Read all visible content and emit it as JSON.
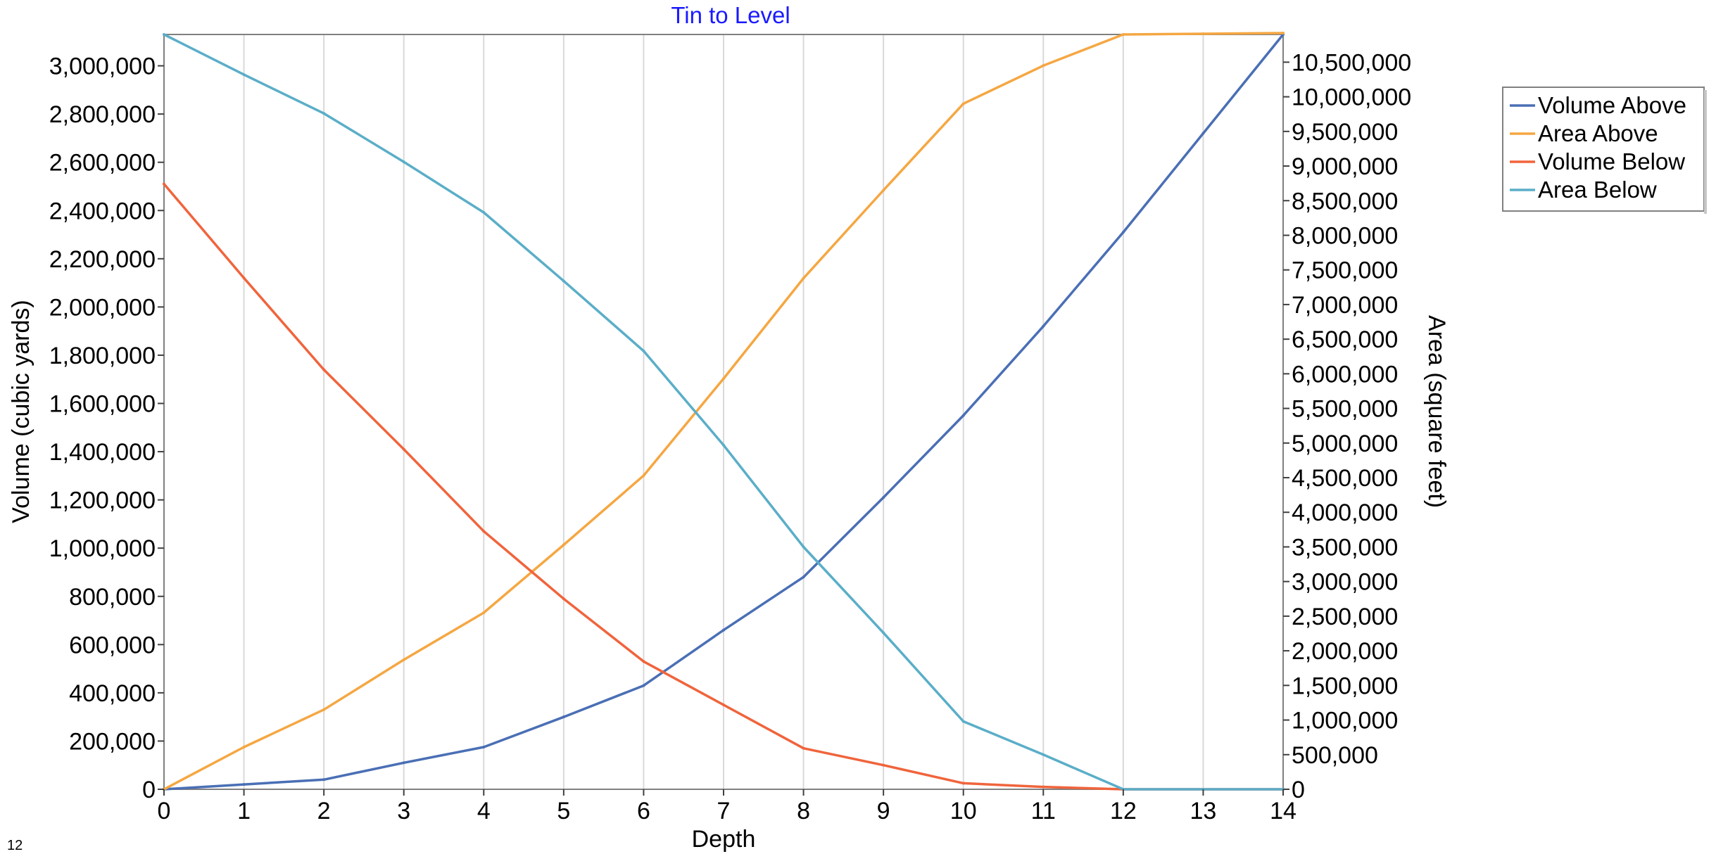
{
  "chart_data": {
    "type": "line",
    "title": "Tin to Level",
    "xlabel": "Depth",
    "ylabel_left": "Volume (cubic yards)",
    "ylabel_right": "Area (square feet)",
    "corner_label": "12",
    "x": [
      0,
      1,
      2,
      3,
      4,
      5,
      6,
      7,
      8,
      9,
      10,
      11,
      12,
      13,
      14
    ],
    "x_ticks": [
      "0",
      "1",
      "2",
      "3",
      "4",
      "5",
      "6",
      "7",
      "8",
      "9",
      "10",
      "11",
      "12",
      "13",
      "14"
    ],
    "xlim": [
      0,
      14
    ],
    "ylim_left": [
      0,
      3130000
    ],
    "ylim_right": [
      0,
      10900000
    ],
    "y_ticks_left": [
      "0",
      "200,000",
      "400,000",
      "600,000",
      "800,000",
      "1,000,000",
      "1,200,000",
      "1,400,000",
      "1,600,000",
      "1,800,000",
      "2,000,000",
      "2,200,000",
      "2,400,000",
      "2,600,000",
      "2,800,000",
      "3,000,000"
    ],
    "y_ticks_right": [
      "0",
      "500,000",
      "1,000,000",
      "1,500,000",
      "2,000,000",
      "2,500,000",
      "3,000,000",
      "3,500,000",
      "4,000,000",
      "4,500,000",
      "5,000,000",
      "5,500,000",
      "6,000,000",
      "6,500,000",
      "7,000,000",
      "7,500,000",
      "8,000,000",
      "8,500,000",
      "9,000,000",
      "9,500,000",
      "10,000,000",
      "10,500,000"
    ],
    "grid": "vertical",
    "legend_position": "right",
    "series": [
      {
        "name": "Volume Above",
        "axis": "left",
        "color": "#4a6fb5",
        "values": [
          0,
          20000,
          40000,
          110000,
          175000,
          300000,
          430000,
          660000,
          880000,
          1210000,
          1550000,
          1920000,
          2310000,
          2720000,
          3130000
        ]
      },
      {
        "name": "Area Above",
        "axis": "right",
        "color": "#f5a742",
        "values": [
          0,
          610000,
          1150000,
          1870000,
          2550000,
          3530000,
          4530000,
          5930000,
          7380000,
          8650000,
          9900000,
          10450000,
          10900000,
          10910000,
          10920000
        ]
      },
      {
        "name": "Volume Below",
        "axis": "left",
        "color": "#f0643c",
        "values": [
          2510000,
          2120000,
          1740000,
          1410000,
          1070000,
          790000,
          530000,
          350000,
          170000,
          100000,
          25000,
          10000,
          0,
          0,
          0
        ]
      },
      {
        "name": "Area Below",
        "axis": "right",
        "color": "#5aaec8",
        "values": [
          10900000,
          10320000,
          9760000,
          9060000,
          8330000,
          7340000,
          6330000,
          4970000,
          3500000,
          2260000,
          980000,
          500000,
          0,
          0,
          0
        ]
      }
    ]
  }
}
